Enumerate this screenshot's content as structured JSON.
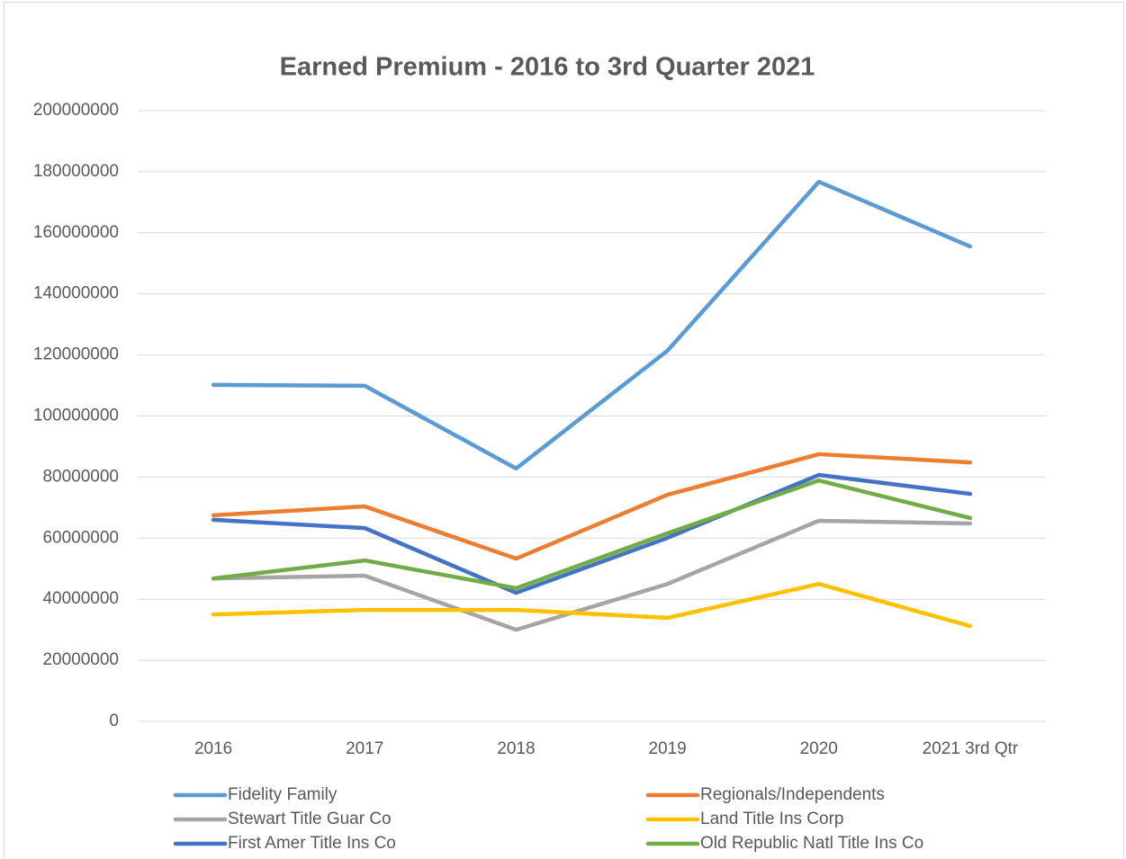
{
  "chart_data": {
    "type": "line",
    "title": "Earned Premium - 2016 to 3rd Quarter 2021",
    "categories": [
      "2016",
      "2017",
      "2018",
      "2019",
      "2020",
      "2021 3rd Qtr"
    ],
    "ylim": [
      0,
      200000000
    ],
    "yticks": [
      0,
      20000000,
      40000000,
      60000000,
      80000000,
      100000000,
      120000000,
      140000000,
      160000000,
      180000000,
      200000000
    ],
    "grid": true,
    "legend": "bottom",
    "series": [
      {
        "name": "Fidelity Family",
        "color": "#5b9bd5",
        "values": [
          110200000,
          109900000,
          82800000,
          121400000,
          176700000,
          155500000
        ]
      },
      {
        "name": "Regionals/Independents",
        "color": "#ed7d31",
        "values": [
          67500000,
          70400000,
          53300000,
          74200000,
          87500000,
          84800000
        ]
      },
      {
        "name": "Stewart Title Guar Co",
        "color": "#a5a5a5",
        "values": [
          46800000,
          47700000,
          30000000,
          45000000,
          65700000,
          64800000
        ]
      },
      {
        "name": "Land Title Ins Corp",
        "color": "#ffc000",
        "values": [
          35000000,
          36500000,
          36500000,
          33900000,
          45000000,
          31200000
        ]
      },
      {
        "name": "First Amer Title Ins Co",
        "color": "#4472c4",
        "values": [
          66000000,
          63300000,
          42100000,
          60100000,
          80700000,
          74500000
        ]
      },
      {
        "name": "Old Republic Natl Title Ins Co",
        "color": "#70ad47",
        "values": [
          46800000,
          52700000,
          43600000,
          61600000,
          78900000,
          66600000
        ]
      }
    ]
  }
}
